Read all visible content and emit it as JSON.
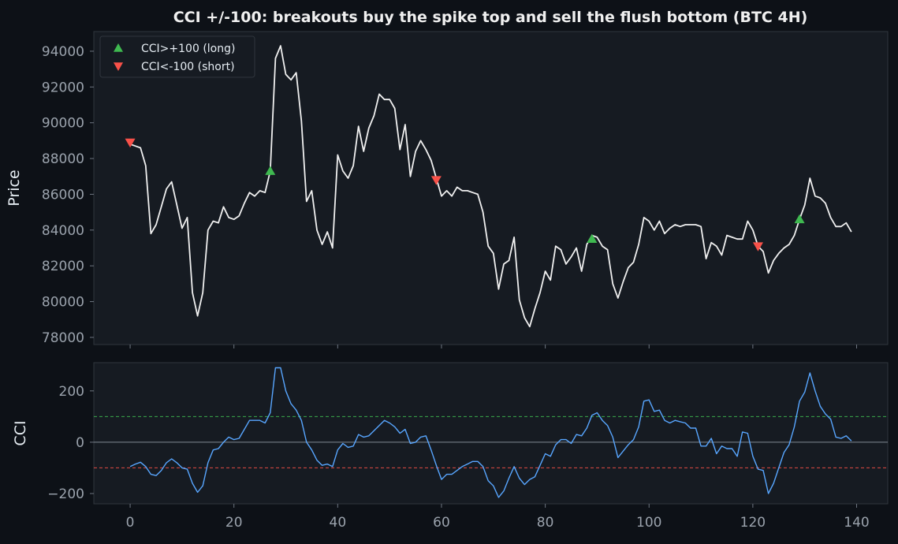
{
  "title": "CCI +/-100: breakouts buy the spike top and sell the flush bottom (BTC 4H)",
  "colors": {
    "background": "#0d1117",
    "panel": "#161b22",
    "price_line": "#f0f0f0",
    "cci_line": "#58a6ff",
    "long_marker": "#3fb950",
    "short_marker": "#f85149",
    "upper_threshold": "#3fb950",
    "lower_threshold": "#f85149",
    "zero_line": "#8b949e",
    "axis_text": "#9ba3ad"
  },
  "chart_data": [
    {
      "type": "line",
      "panel": "price",
      "ylabel": "Price",
      "xlim": [
        -7,
        146
      ],
      "ylim": [
        77600,
        95100
      ],
      "yticks": [
        78000,
        80000,
        82000,
        84000,
        86000,
        88000,
        90000,
        92000,
        94000
      ],
      "ytick_labels": [
        "78000",
        "80000",
        "82000",
        "84000",
        "86000",
        "88000",
        "90000",
        "92000",
        "94000"
      ],
      "xticks": [
        0,
        20,
        40,
        60,
        80,
        100,
        120,
        140
      ],
      "legend": {
        "placement": "top-left",
        "entries": [
          {
            "label": "CCI>+100 (long)",
            "marker": "triangle-up",
            "color": "#3fb950"
          },
          {
            "label": "CCI<-100 (short)",
            "marker": "triangle-down",
            "color": "#f85149"
          }
        ]
      },
      "series": [
        {
          "type": "line",
          "x_start": 0,
          "values": [
            88800,
            88700,
            88600,
            87600,
            83800,
            84300,
            85300,
            86300,
            86700,
            85400,
            84100,
            84700,
            80500,
            79200,
            80500,
            84000,
            84500,
            84400,
            85300,
            84700,
            84600,
            84800,
            85500,
            86100,
            85900,
            86200,
            86100,
            87300,
            93600,
            94300,
            92700,
            92400,
            92800,
            90100,
            85600,
            86200,
            84000,
            83200,
            83900,
            83000,
            88200,
            87300,
            86900,
            87600,
            89800,
            88400,
            89700,
            90400,
            91600,
            91300,
            91300,
            90800,
            88500,
            89900,
            87000,
            88400,
            89000,
            88500,
            87900,
            86900,
            85900,
            86200,
            85900,
            86400,
            86200,
            86200,
            86100,
            86000,
            85000,
            83100,
            82700,
            80700,
            82100,
            82300,
            83600,
            80100,
            79100,
            78600,
            79600,
            80500,
            81700,
            81200,
            83100,
            82900,
            82100,
            82500,
            83000,
            81700,
            83200,
            83700,
            83600,
            83100,
            82900,
            81000,
            80200,
            81100,
            81900,
            82200,
            83200,
            84700,
            84500,
            84000,
            84500,
            83800,
            84100,
            84300,
            84200,
            84300,
            84300,
            84300,
            84200,
            82400,
            83300,
            83100,
            82600,
            83700,
            83600,
            83500,
            83500,
            84500,
            84000,
            83100,
            82800,
            81600,
            82300,
            82700,
            83000,
            83200,
            83700,
            84600,
            85400,
            86900,
            85900,
            85800,
            85500,
            84700,
            84200,
            84200,
            84400,
            83900
          ]
        }
      ],
      "markers": [
        {
          "kind": "short",
          "x": 0,
          "y": 88900
        },
        {
          "kind": "long",
          "x": 27,
          "y": 87300
        },
        {
          "kind": "short",
          "x": 59,
          "y": 86800
        },
        {
          "kind": "long",
          "x": 89,
          "y": 83500
        },
        {
          "kind": "short",
          "x": 121,
          "y": 83100
        },
        {
          "kind": "long",
          "x": 129,
          "y": 84600
        }
      ]
    },
    {
      "type": "line",
      "panel": "cci",
      "ylabel": "CCI",
      "xlim": [
        -7,
        146
      ],
      "ylim": [
        -240,
        310
      ],
      "yticks": [
        -200,
        0,
        200
      ],
      "ytick_labels": [
        "−200",
        "0",
        "200"
      ],
      "xticks": [
        0,
        20,
        40,
        60,
        80,
        100,
        120,
        140
      ],
      "xtick_labels": [
        "0",
        "20",
        "40",
        "60",
        "80",
        "100",
        "120",
        "140"
      ],
      "hlines": [
        {
          "y": 100,
          "style": "dashed",
          "color": "#3fb950"
        },
        {
          "y": 0,
          "style": "solid",
          "color": "#8b949e"
        },
        {
          "y": -100,
          "style": "dashed",
          "color": "#f85149"
        }
      ],
      "series": [
        {
          "type": "line",
          "x_start": 0,
          "values": [
            -95,
            -85,
            -78,
            -95,
            -125,
            -130,
            -110,
            -80,
            -65,
            -80,
            -100,
            -105,
            -160,
            -195,
            -170,
            -80,
            -30,
            -25,
            0,
            20,
            10,
            15,
            50,
            85,
            85,
            85,
            75,
            115,
            290,
            290,
            200,
            150,
            125,
            85,
            0,
            -30,
            -70,
            -90,
            -85,
            -95,
            -30,
            -5,
            -20,
            -15,
            30,
            20,
            25,
            45,
            65,
            85,
            75,
            60,
            35,
            50,
            -5,
            0,
            20,
            25,
            -30,
            -90,
            -145,
            -125,
            -125,
            -110,
            -95,
            -85,
            -75,
            -75,
            -95,
            -150,
            -170,
            -215,
            -190,
            -140,
            -95,
            -140,
            -165,
            -145,
            -135,
            -90,
            -45,
            -55,
            -10,
            10,
            10,
            -5,
            30,
            25,
            55,
            105,
            115,
            85,
            65,
            20,
            -60,
            -35,
            -10,
            10,
            60,
            160,
            165,
            120,
            125,
            85,
            75,
            85,
            80,
            75,
            55,
            55,
            -15,
            -15,
            15,
            -45,
            -15,
            -25,
            -25,
            -55,
            40,
            35,
            -55,
            -105,
            -110,
            -200,
            -160,
            -100,
            -40,
            -10,
            60,
            160,
            195,
            270,
            200,
            140,
            110,
            90,
            20,
            15,
            25,
            5
          ]
        }
      ]
    }
  ]
}
